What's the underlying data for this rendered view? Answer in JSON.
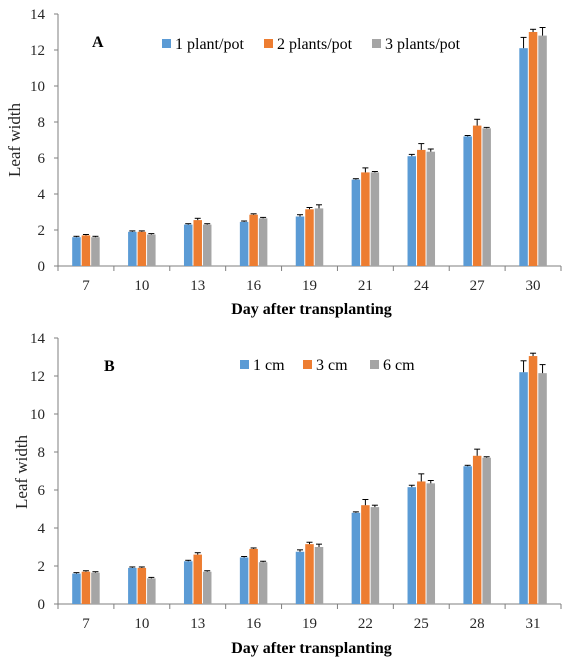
{
  "chart_data": [
    {
      "type": "bar",
      "panel_label": "A",
      "categories": [
        "7",
        "10",
        "13",
        "16",
        "19",
        "21",
        "24",
        "27",
        "30"
      ],
      "series": [
        {
          "name": "1 plant/pot",
          "color": "#5b9bd5",
          "values": [
            1.6,
            1.9,
            2.3,
            2.45,
            2.75,
            4.8,
            6.1,
            7.2,
            12.1
          ],
          "errors": [
            0.05,
            0.05,
            0.05,
            0.05,
            0.1,
            0.05,
            0.1,
            0.05,
            0.6
          ]
        },
        {
          "name": "2 plants/pot",
          "color": "#ed7d31",
          "values": [
            1.7,
            1.9,
            2.55,
            2.85,
            3.15,
            5.2,
            6.45,
            7.8,
            13.0
          ],
          "errors": [
            0.05,
            0.05,
            0.1,
            0.05,
            0.1,
            0.25,
            0.35,
            0.35,
            0.15
          ]
        },
        {
          "name": "3 plants/pot",
          "color": "#a5a5a5",
          "values": [
            1.6,
            1.75,
            2.3,
            2.65,
            3.2,
            5.2,
            6.35,
            7.65,
            12.8
          ],
          "errors": [
            0.05,
            0.05,
            0.05,
            0.05,
            0.2,
            0.05,
            0.15,
            0.05,
            0.45
          ]
        }
      ],
      "xlabel": "Day after transplanting",
      "ylabel": "Leaf width",
      "ylim": [
        0,
        14
      ],
      "yticks": [
        "0",
        "2",
        "4",
        "6",
        "8",
        "10",
        "12",
        "14"
      ],
      "grid": false,
      "legend": "top"
    },
    {
      "type": "bar",
      "panel_label": "B",
      "categories": [
        "7",
        "10",
        "13",
        "16",
        "19",
        "22",
        "25",
        "28",
        "31"
      ],
      "series": [
        {
          "name": "1 cm",
          "color": "#5b9bd5",
          "values": [
            1.6,
            1.9,
            2.25,
            2.45,
            2.75,
            4.8,
            6.15,
            7.25,
            12.2
          ],
          "errors": [
            0.05,
            0.05,
            0.05,
            0.05,
            0.1,
            0.05,
            0.1,
            0.05,
            0.6
          ]
        },
        {
          "name": "3 cm",
          "color": "#ed7d31",
          "values": [
            1.7,
            1.9,
            2.6,
            2.9,
            3.15,
            5.2,
            6.45,
            7.8,
            13.05
          ],
          "errors": [
            0.05,
            0.05,
            0.1,
            0.05,
            0.1,
            0.3,
            0.4,
            0.35,
            0.15
          ]
        },
        {
          "name": "6 cm",
          "color": "#a5a5a5",
          "values": [
            1.65,
            1.35,
            1.7,
            2.2,
            3.0,
            5.1,
            6.35,
            7.7,
            12.15
          ],
          "errors": [
            0.05,
            0.05,
            0.05,
            0.05,
            0.15,
            0.1,
            0.15,
            0.05,
            0.45
          ]
        }
      ],
      "xlabel": "Day after transplanting",
      "ylabel": "Leaf width",
      "ylim": [
        0,
        14
      ],
      "yticks": [
        "0",
        "2",
        "4",
        "6",
        "8",
        "10",
        "12",
        "14"
      ],
      "grid": false,
      "legend": "top"
    }
  ]
}
